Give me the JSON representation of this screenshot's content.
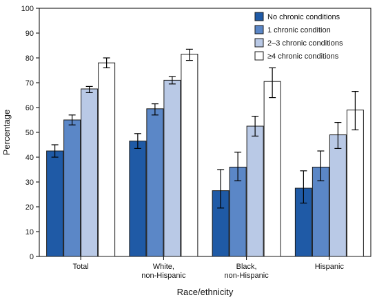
{
  "chart_data": {
    "type": "bar",
    "categories": [
      [
        "Total"
      ],
      [
        "White,",
        "non-Hispanic"
      ],
      [
        "Black,",
        "non-Hispanic"
      ],
      [
        "Hispanic"
      ]
    ],
    "series": [
      {
        "name": "No chronic conditions",
        "color": "#1f5aa6",
        "values": [
          42.5,
          46.5,
          26.5,
          27.5
        ],
        "ci_low": [
          40,
          43.5,
          19.5,
          21.5
        ],
        "ci_high": [
          45,
          49.5,
          35,
          34.5
        ]
      },
      {
        "name": "1 chronic condition",
        "color": "#5b87c7",
        "values": [
          55,
          59.5,
          36,
          36
        ],
        "ci_low": [
          53,
          57,
          30.5,
          30.5
        ],
        "ci_high": [
          57,
          61.5,
          42,
          42.5
        ]
      },
      {
        "name": "2–3 chronic conditions",
        "color": "#b9c9e6",
        "values": [
          67.5,
          71,
          52.5,
          49
        ],
        "ci_low": [
          66,
          69.5,
          48.5,
          43.5
        ],
        "ci_high": [
          68.5,
          72.5,
          56.5,
          54
        ]
      },
      {
        "name": "≥4 chronic conditions",
        "color": "#ffffff",
        "values": [
          78,
          81.5,
          70.5,
          59
        ],
        "ci_low": [
          76,
          79,
          64,
          51
        ],
        "ci_high": [
          80,
          83.5,
          76,
          66.5
        ]
      }
    ],
    "xlabel": "Race/ethnicity",
    "ylabel": "Percentage",
    "ylim": [
      0,
      100
    ],
    "yticks": [
      0,
      10,
      20,
      30,
      40,
      50,
      60,
      70,
      80,
      90,
      100
    ],
    "legend_position": "top-right",
    "grid": false
  }
}
